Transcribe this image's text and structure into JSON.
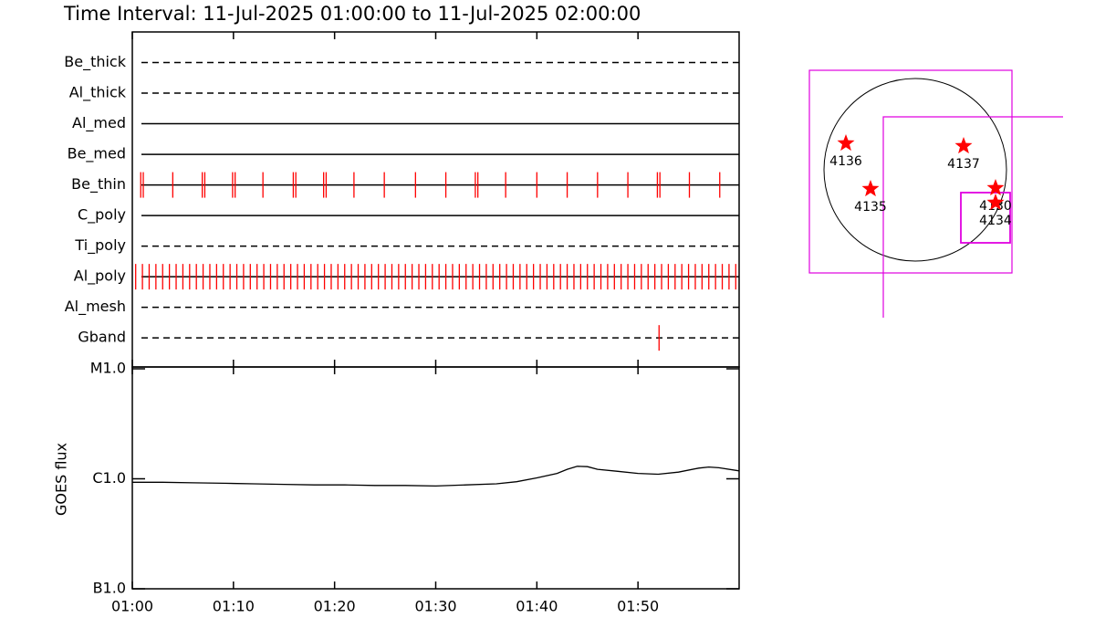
{
  "title": "Time Interval: 11-Jul-2025 01:00:00 to 11-Jul-2025 02:00:00",
  "chart_data": [
    {
      "type": "event",
      "color": "#ff0000",
      "filters": [
        {
          "name": "Be_thick",
          "line": "dashed"
        },
        {
          "name": "Al_thick",
          "line": "dashed"
        },
        {
          "name": "Al_med",
          "line": "solid"
        },
        {
          "name": "Be_med",
          "line": "solid"
        },
        {
          "name": "Be_thin",
          "line": "solid",
          "events": [
            "01:00:50",
            "01:01:05",
            "01:04:00",
            "01:06:55",
            "01:07:10",
            "01:09:55",
            "01:10:10",
            "01:12:55",
            "01:15:55",
            "01:16:10",
            "01:18:55",
            "01:19:10",
            "01:21:55",
            "01:24:55",
            "01:28:00",
            "01:31:00",
            "01:33:55",
            "01:34:10",
            "01:36:55",
            "01:40:00",
            "01:43:00",
            "01:46:00",
            "01:49:00",
            "01:51:55",
            "01:52:10",
            "01:55:05",
            "01:58:05"
          ]
        },
        {
          "name": "C_poly",
          "line": "solid"
        },
        {
          "name": "Ti_poly",
          "line": "dashed"
        },
        {
          "name": "Al_poly",
          "line": "solid",
          "events": [
            "01:00:20",
            "01:01:00",
            "01:01:40",
            "01:02:20",
            "01:03:00",
            "01:03:40",
            "01:04:20",
            "01:05:00",
            "01:05:40",
            "01:06:20",
            "01:07:00",
            "01:07:40",
            "01:08:20",
            "01:09:00",
            "01:09:40",
            "01:10:20",
            "01:11:00",
            "01:11:40",
            "01:12:20",
            "01:13:00",
            "01:13:40",
            "01:14:20",
            "01:15:00",
            "01:15:40",
            "01:16:20",
            "01:17:00",
            "01:17:40",
            "01:18:20",
            "01:19:00",
            "01:19:40",
            "01:20:20",
            "01:21:00",
            "01:21:40",
            "01:22:20",
            "01:23:00",
            "01:23:40",
            "01:24:20",
            "01:25:00",
            "01:25:40",
            "01:26:20",
            "01:27:00",
            "01:27:40",
            "01:28:20",
            "01:29:00",
            "01:29:40",
            "01:30:20",
            "01:31:00",
            "01:31:40",
            "01:32:20",
            "01:33:00",
            "01:33:40",
            "01:34:20",
            "01:35:00",
            "01:35:40",
            "01:36:20",
            "01:37:00",
            "01:37:40",
            "01:38:20",
            "01:39:00",
            "01:39:40",
            "01:40:20",
            "01:41:00",
            "01:41:40",
            "01:42:20",
            "01:43:00",
            "01:43:40",
            "01:44:20",
            "01:45:00",
            "01:45:40",
            "01:46:20",
            "01:47:00",
            "01:47:40",
            "01:48:20",
            "01:49:00",
            "01:49:40",
            "01:50:20",
            "01:51:00",
            "01:51:40",
            "01:52:20",
            "01:53:00",
            "01:53:40",
            "01:54:20",
            "01:55:00",
            "01:55:40",
            "01:56:20",
            "01:57:00",
            "01:57:40",
            "01:58:20",
            "01:59:00",
            "01:59:40"
          ]
        },
        {
          "name": "Al_mesh",
          "line": "dashed"
        },
        {
          "name": "Gband",
          "line": "dashed",
          "events": [
            "01:52:05"
          ]
        }
      ]
    },
    {
      "type": "line",
      "ylabel": "GOES flux",
      "log_scale": true,
      "color": "#000000",
      "xlim": [
        "01:00",
        "02:00"
      ],
      "xticks": [
        "01:00",
        "01:10",
        "01:20",
        "01:30",
        "01:40",
        "01:50"
      ],
      "ylim": [
        1e-07,
        1e-05
      ],
      "yticks": [
        {
          "value": 1e-07,
          "label": "B1.0"
        },
        {
          "value": 1e-06,
          "label": "C1.0"
        },
        {
          "value": 1e-05,
          "label": "M1.0"
        }
      ],
      "x": [
        "01:00",
        "01:03",
        "01:06",
        "01:09",
        "01:12",
        "01:15",
        "01:18",
        "01:21",
        "01:24",
        "01:27",
        "01:30",
        "01:33",
        "01:36",
        "01:38",
        "01:40",
        "01:42",
        "01:43",
        "01:44",
        "01:45",
        "01:46",
        "01:48",
        "01:50",
        "01:52",
        "01:54",
        "01:56",
        "01:57",
        "01:58",
        "02:00"
      ],
      "values": [
        9.3e-07,
        9.3e-07,
        9.2e-07,
        9.1e-07,
        9e-07,
        8.9e-07,
        8.8e-07,
        8.8e-07,
        8.7e-07,
        8.7e-07,
        8.6e-07,
        8.8e-07,
        9e-07,
        9.4e-07,
        1.02e-06,
        1.12e-06,
        1.22e-06,
        1.3e-06,
        1.29e-06,
        1.22e-06,
        1.17e-06,
        1.12e-06,
        1.1e-06,
        1.15e-06,
        1.25e-06,
        1.28e-06,
        1.26e-06,
        1.18e-06
      ]
    }
  ],
  "map": {
    "regions": [
      {
        "label": "4136"
      },
      {
        "label": "4137"
      },
      {
        "label": "4135"
      },
      {
        "label": "4130"
      },
      {
        "label": "4134"
      }
    ]
  }
}
